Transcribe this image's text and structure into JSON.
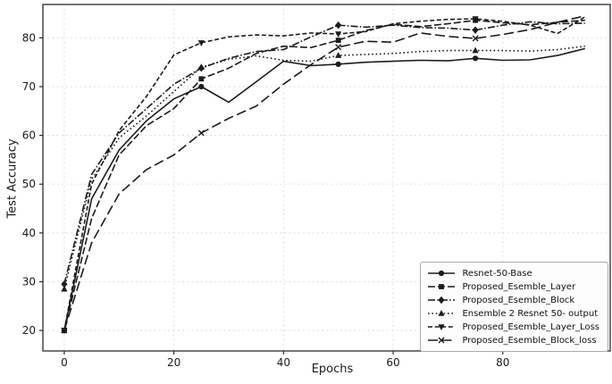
{
  "colors": {
    "background": "#ffffff",
    "line": "#1c1c1c",
    "grid": "#d9d9d9",
    "spine": "#2b2b2b",
    "tick_text": "#1a1a1a",
    "legend_border": "#ababab",
    "legend_bg": "#fdfdfd"
  },
  "chart_data": {
    "type": "line",
    "title": "",
    "xlabel": "Epochs",
    "ylabel": "Test Accuracy",
    "xlim": [
      -3.9,
      99.6
    ],
    "ylim": [
      15.8,
      86.85
    ],
    "xticks": [
      0,
      20,
      40,
      60,
      80
    ],
    "yticks": [
      20,
      30,
      40,
      50,
      60,
      70,
      80
    ],
    "grid": true,
    "grid_style": "dashed-light",
    "legend_position": "lower right",
    "x": [
      0,
      5,
      10,
      15,
      20,
      25,
      30,
      35,
      40,
      45,
      50,
      55,
      60,
      65,
      70,
      75,
      80,
      85,
      90,
      95
    ],
    "marker_every": 5,
    "series": [
      {
        "name": "Resnet-50-Base",
        "line_style": "solid",
        "marker": "circle",
        "values": [
          20,
          47,
          57,
          63,
          67.5,
          70,
          66.8,
          71,
          75.2,
          74.3,
          74.6,
          75,
          75.2,
          75.4,
          75.3,
          75.8,
          75.4,
          75.5,
          76.4,
          77.8
        ]
      },
      {
        "name": "Proposed_Esemble_Layer",
        "line_style": "dashed",
        "marker": "square",
        "values": [
          20,
          43,
          56,
          62,
          65.5,
          71.6,
          73.8,
          76.8,
          78.3,
          78,
          79.5,
          81.5,
          82.8,
          82.3,
          82.9,
          83.6,
          83.1,
          82.7,
          83.2,
          83.6
        ]
      },
      {
        "name": "Proposed_Esemble_Block",
        "line_style": "dashdot",
        "marker": "diamond",
        "values": [
          29.5,
          52,
          60.5,
          65.5,
          70.5,
          73.8,
          75.8,
          77.2,
          77.6,
          80.2,
          82.6,
          82.2,
          82.6,
          82.1,
          82,
          81.6,
          82.6,
          83.3,
          82.9,
          83
        ]
      },
      {
        "name": "Ensemble 2 Resnet 50- output",
        "line_style": "dotted",
        "marker": "triangle-up",
        "values": [
          28.5,
          51,
          59.5,
          64,
          69,
          74,
          75.6,
          76.3,
          75.4,
          75.2,
          76.4,
          76.6,
          76.8,
          77.2,
          77.4,
          77.4,
          77.4,
          77.3,
          77.6,
          78.3
        ]
      },
      {
        "name": "Proposed_Esemble_Layer_Loss",
        "line_style": "dashed-medium",
        "marker": "triangle-down",
        "values": [
          20,
          50,
          61,
          68,
          76.5,
          79,
          80.2,
          80.6,
          80.4,
          81,
          80.8,
          81.3,
          82.9,
          83.4,
          83.8,
          83.9,
          83.4,
          82.6,
          80.9,
          84.3
        ]
      },
      {
        "name": "Proposed_Esemble_Block_loss",
        "line_style": "dashed-long",
        "marker": "x",
        "values": [
          20,
          38,
          48,
          53,
          56,
          60.5,
          63.5,
          66,
          70.5,
          74.5,
          78.1,
          79.3,
          79.1,
          81,
          80.3,
          79.9,
          80.7,
          81.7,
          83.2,
          84.5
        ]
      }
    ]
  }
}
